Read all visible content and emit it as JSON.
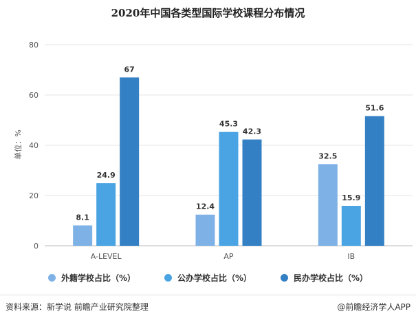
{
  "footer": {
    "source": "资料来源：新学说 前瞻产业研究院整理",
    "brand": "@前瞻经济学人APP"
  },
  "chart_data": {
    "type": "bar",
    "title": "2020年中国各类型国际学校课程分布情况",
    "xlabel": "",
    "ylabel": "单位：%",
    "ylim": [
      0,
      80
    ],
    "yticks": [
      0,
      20,
      40,
      60,
      80
    ],
    "grid": true,
    "legend_position": "bottom",
    "categories": [
      "A-LEVEL",
      "AP",
      "IB"
    ],
    "series": [
      {
        "name": "外籍学校占比（%）",
        "values": [
          8.1,
          12.4,
          32.5
        ],
        "labels": [
          "8.1",
          "12.4",
          "32.5"
        ],
        "color": "#7eb2e6"
      },
      {
        "name": "公办学校占比（%）",
        "values": [
          24.9,
          45.3,
          15.9
        ],
        "labels": [
          "24.9",
          "45.3",
          "15.9"
        ],
        "color": "#4aa4e4"
      },
      {
        "name": "民办学校占比（%）",
        "values": [
          67,
          42.3,
          51.6
        ],
        "labels": [
          "67",
          "42.3",
          "51.6"
        ],
        "color": "#3480c4"
      }
    ]
  }
}
